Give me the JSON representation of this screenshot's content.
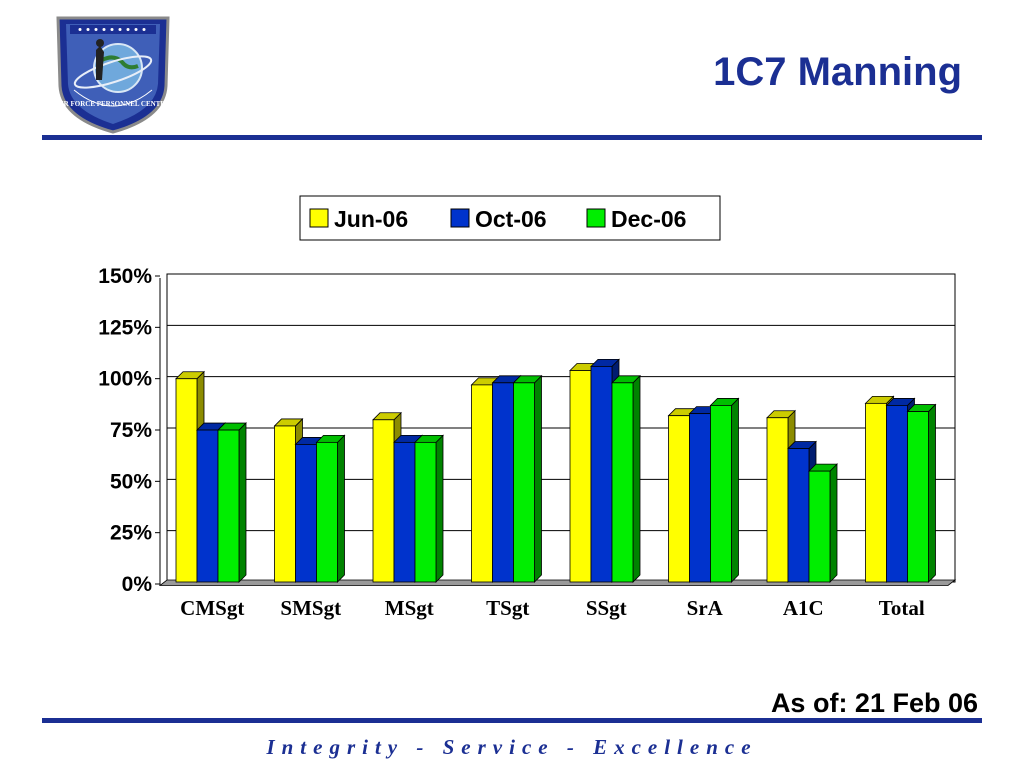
{
  "slide": {
    "title": "1C7 Manning",
    "as_of": "As of: 21 Feb 06",
    "footer": "Integrity - Service - Excellence",
    "logo_text": "AIR FORCE PERSONNEL CENTER"
  },
  "colors": {
    "brand_blue": "#1b2f93",
    "series": [
      "#ffff00",
      "#0033cc",
      "#00ee00"
    ]
  },
  "chart_data": {
    "type": "bar",
    "title": "",
    "xlabel": "",
    "ylabel": "",
    "categories": [
      "CMSgt",
      "SMSgt",
      "MSgt",
      "TSgt",
      "SSgt",
      "SrA",
      "A1C",
      "Total"
    ],
    "series": [
      {
        "name": "Jun-06",
        "values": [
          99,
          76,
          79,
          96,
          103,
          81,
          80,
          87
        ]
      },
      {
        "name": "Oct-06",
        "values": [
          74,
          67,
          68,
          97,
          105,
          82,
          65,
          86
        ]
      },
      {
        "name": "Dec-06",
        "values": [
          74,
          68,
          68,
          97,
          97,
          86,
          54,
          83
        ]
      }
    ],
    "ylim": [
      0,
      150
    ],
    "yticks": [
      "0%",
      "25%",
      "50%",
      "75%",
      "100%",
      "125%",
      "150%"
    ],
    "grid": true,
    "legend": "top-center",
    "style": "3d-clustered"
  }
}
